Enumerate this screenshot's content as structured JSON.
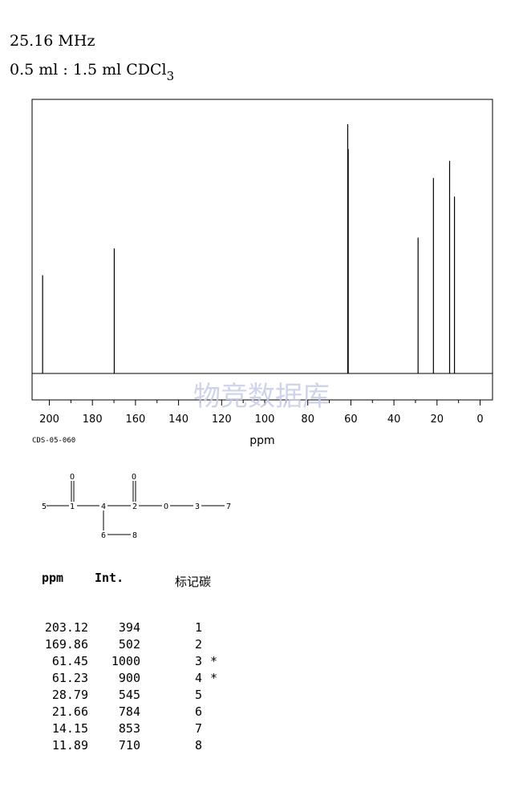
{
  "header": {
    "frequency": "25.16 MHz",
    "solvent_main": "0.5 ml : 1.5 ml CDCl",
    "solvent_sub": "3"
  },
  "code": "CDS-05-060",
  "watermark": "物竞数据库",
  "chart_data": {
    "type": "line",
    "title": "",
    "xlabel": "ppm",
    "ylabel": "",
    "xlim": [
      205,
      -5
    ],
    "x_reversed": true,
    "xticks": [
      200,
      180,
      160,
      140,
      120,
      100,
      80,
      60,
      40,
      20,
      0
    ],
    "grid": false,
    "series": [
      {
        "peaks": [
          {
            "ppm": 203.12,
            "intensity": 394
          },
          {
            "ppm": 169.86,
            "intensity": 502
          },
          {
            "ppm": 61.45,
            "intensity": 1000
          },
          {
            "ppm": 61.23,
            "intensity": 900
          },
          {
            "ppm": 28.79,
            "intensity": 545
          },
          {
            "ppm": 21.66,
            "intensity": 784
          },
          {
            "ppm": 14.15,
            "intensity": 853
          },
          {
            "ppm": 11.89,
            "intensity": 710
          }
        ]
      }
    ]
  },
  "structure": {
    "atoms": [
      "5",
      "1",
      "4",
      "2",
      "O",
      "3",
      "7",
      "O",
      "O",
      "6",
      "8"
    ]
  },
  "table": {
    "headers": {
      "ppm": "ppm",
      "int": "Int.",
      "carbon": "标记碳"
    },
    "rows": [
      {
        "ppm": "203.12",
        "int": "394",
        "atom": "1",
        "star": ""
      },
      {
        "ppm": "169.86",
        "int": "502",
        "atom": "2",
        "star": ""
      },
      {
        "ppm": "61.45",
        "int": "1000",
        "atom": "3",
        "star": "*"
      },
      {
        "ppm": "61.23",
        "int": "900",
        "atom": "4",
        "star": "*"
      },
      {
        "ppm": "28.79",
        "int": "545",
        "atom": "5",
        "star": ""
      },
      {
        "ppm": "21.66",
        "int": "784",
        "atom": "6",
        "star": ""
      },
      {
        "ppm": "14.15",
        "int": "853",
        "atom": "7",
        "star": ""
      },
      {
        "ppm": "11.89",
        "int": "710",
        "atom": "8",
        "star": ""
      }
    ]
  }
}
